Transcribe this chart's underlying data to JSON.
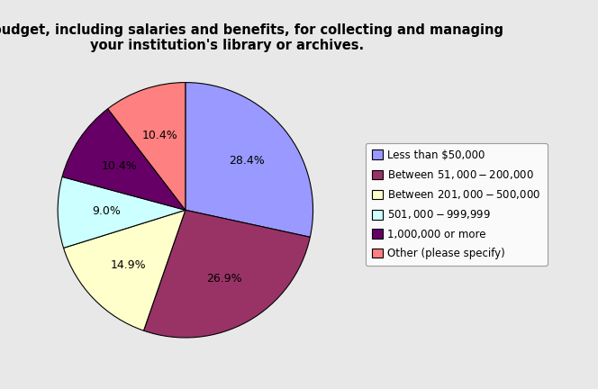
{
  "title": "Total budget, including salaries and benefits, for collecting and managing\nyour institution's library or archives.",
  "slices": [
    28.4,
    26.9,
    14.9,
    9.0,
    10.4,
    10.4
  ],
  "labels": [
    "28.4%",
    "26.9%",
    "14.9%",
    "9.0%",
    "10.4%",
    "10.4%"
  ],
  "colors": [
    "#9999FF",
    "#993366",
    "#FFFFCC",
    "#CCFFFF",
    "#660066",
    "#FF8080"
  ],
  "legend_labels": [
    "Less than $50,000",
    "Between $51,000-$200,000",
    "Between $201,000-$500,000",
    "$501,000-$999,999",
    "1,000,000 or more",
    "Other (please specify)"
  ],
  "background_color": "#E8E8E8",
  "startangle": 90,
  "title_fontsize": 10.5,
  "label_fontsize": 9,
  "legend_fontsize": 8.5
}
